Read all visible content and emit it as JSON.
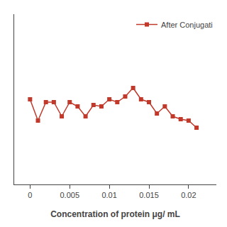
{
  "chart_data": {
    "type": "line",
    "xlabel": "Concentration of protein μg/ mL",
    "x": [
      0.0,
      0.001,
      0.002,
      0.003,
      0.004,
      0.005,
      0.006,
      0.007,
      0.008,
      0.009,
      0.01,
      0.011,
      0.012,
      0.013,
      0.014,
      0.015,
      0.016,
      0.017,
      0.018,
      0.019,
      0.02,
      0.021
    ],
    "series": [
      {
        "name": "After Conjugati",
        "color": "#c0392b",
        "marker": "square",
        "line_style": "solid",
        "values": [
          0.84,
          0.825,
          0.838,
          0.838,
          0.828,
          0.838,
          0.835,
          0.828,
          0.836,
          0.835,
          0.84,
          0.838,
          0.842,
          0.848,
          0.84,
          0.838,
          0.83,
          0.835,
          0.828,
          0.826,
          0.825,
          0.82
        ]
      }
    ],
    "xlim": [
      -0.002,
      0.0235
    ],
    "xticks": [
      0.0,
      0.005,
      0.01,
      0.015,
      0.02
    ],
    "ylim": [
      0.78,
      0.9
    ],
    "yticks": [],
    "tick_labels": "x",
    "grid": false,
    "legend": "upper right"
  }
}
